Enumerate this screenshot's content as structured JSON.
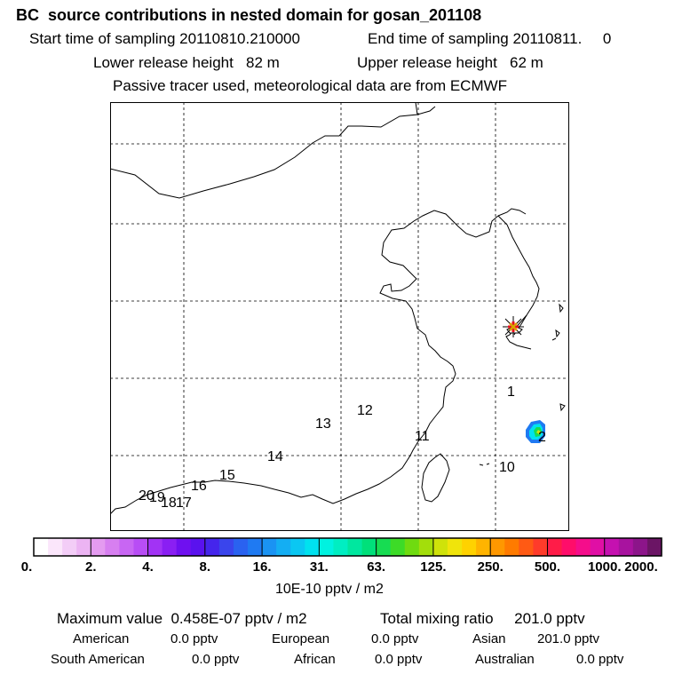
{
  "header": {
    "title": "BC  source contributions in nested domain for gosan_201108",
    "start_time": "Start time of sampling 20110810.210000",
    "end_time": "End time of sampling 20110811.     0",
    "lower_height": "Lower release height   82 m",
    "upper_height": "Upper release height   62 m",
    "tracer_note": "Passive tracer used, meteorological data are from ECMWF"
  },
  "map": {
    "receptor_marker": "star-icon",
    "trajectory_labels": [
      "1",
      "2",
      "10",
      "11",
      "12",
      "13",
      "14",
      "15",
      "16",
      "17",
      "18",
      "19",
      "20"
    ]
  },
  "colorbar": {
    "ticks": [
      "0.",
      "2.",
      "4.",
      "8.",
      "16.",
      "31.",
      "63.",
      "125.",
      "250.",
      "500.",
      "1000.",
      "2000."
    ],
    "colors": [
      "#ffffff",
      "#fbe6fb",
      "#f3cdf7",
      "#ecb4f3",
      "#e49bf0",
      "#d77ff0",
      "#c866f3",
      "#b84df5",
      "#a233f5",
      "#8a1ff3",
      "#6f10f0",
      "#5a12ee",
      "#4525ec",
      "#3a45ec",
      "#2a62f0",
      "#1f7af2",
      "#1a93f3",
      "#14aef3",
      "#0bc7f2",
      "#00e2ef",
      "#00f2e0",
      "#00eec2",
      "#00e79f",
      "#00e07a",
      "#17dc52",
      "#3ddb27",
      "#6fdb10",
      "#a3de0b",
      "#cfe20a",
      "#f0e40b",
      "#ffd200",
      "#ffb400",
      "#ff9800",
      "#ff7b00",
      "#ff5a14",
      "#ff3b2a",
      "#ff1c48",
      "#ff0d6a",
      "#f50d8b",
      "#e00fa5",
      "#c511b0",
      "#a8139f",
      "#8c158a",
      "#6b1565"
    ],
    "units": "10E-10 pptv / m2"
  },
  "summary": {
    "maximum_value": "Maximum value  0.458E-07 pptv / m2",
    "total_mixing_ratio": "Total mixing ratio     201.0 pptv",
    "rows": [
      {
        "label": "American",
        "value": "0.0 pptv"
      },
      {
        "label": "European",
        "value": "0.0 pptv"
      },
      {
        "label": "Asian",
        "value": "201.0 pptv"
      },
      {
        "label": "South American",
        "value": "0.0 pptv"
      },
      {
        "label": "African",
        "value": "0.0 pptv"
      },
      {
        "label": "Australian",
        "value": "0.0 pptv"
      }
    ]
  }
}
